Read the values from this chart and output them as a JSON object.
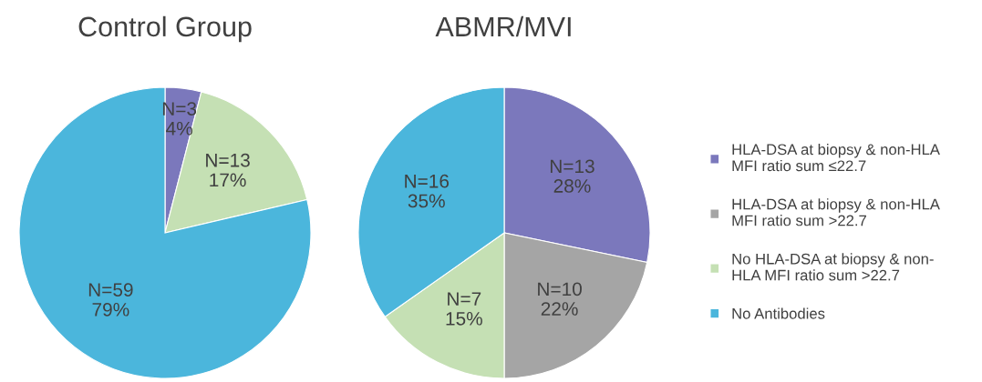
{
  "chart_data": [
    {
      "type": "pie",
      "title": "Control Group",
      "categories": [
        null,
        null,
        null
      ],
      "values": [
        3,
        13,
        59
      ],
      "colors": [
        "#7b78bc",
        "#c5e0b4",
        "#4bb6dc"
      ],
      "value_labels": [
        "N=3\n4%",
        "N=13\n17%",
        "N=59\n79%"
      ],
      "legend": false
    },
    {
      "type": "pie",
      "title": "ABMR/MVI",
      "categories": [
        "HLA-DSA at biopsy & non-HLA\nMFI ratio sum ≤22.7",
        "HLA-DSA at biopsy & non-HLA\nMFI ratio sum >22.7",
        "No HLA-DSA at biopsy & non-\nHLA MFI ratio sum >22.7",
        "No Antibodies"
      ],
      "values": [
        13,
        10,
        7,
        16
      ],
      "colors": [
        "#7b78bc",
        "#a5a5a5",
        "#c5e0b4",
        "#4bb6dc"
      ],
      "value_labels": [
        "N=13\n28%",
        "N=10\n22%",
        "N=7\n15%",
        "N=16\n35%"
      ],
      "legend": "right"
    }
  ]
}
